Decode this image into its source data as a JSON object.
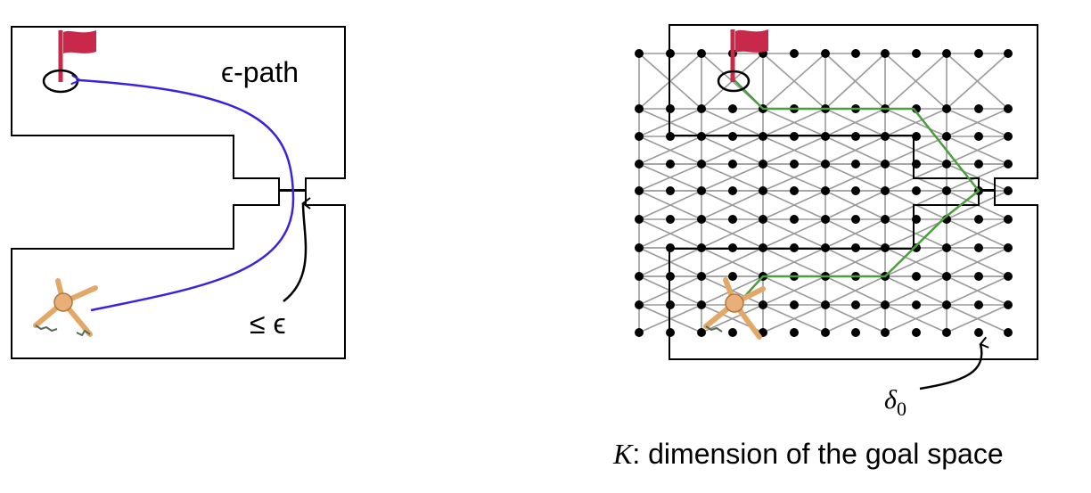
{
  "left_panel": {
    "path_label": "ϵ-path",
    "gap_label": "≤ ϵ"
  },
  "right_panel": {
    "delta_symbol": "δ",
    "delta_subscript": "0",
    "k_symbol": "K",
    "k_caption": ": dimension of the goal space"
  },
  "colors": {
    "wall": "#000000",
    "epsilon_path": "#3b22e0",
    "planned_path": "#4a9e3c",
    "grid_edge": "#9a9a9a",
    "flag": "#c8294a",
    "ant_body": "#e3a868"
  },
  "icons": [
    "goal-flag-icon",
    "ant-robot-icon",
    "goal-marker-ellipse"
  ]
}
